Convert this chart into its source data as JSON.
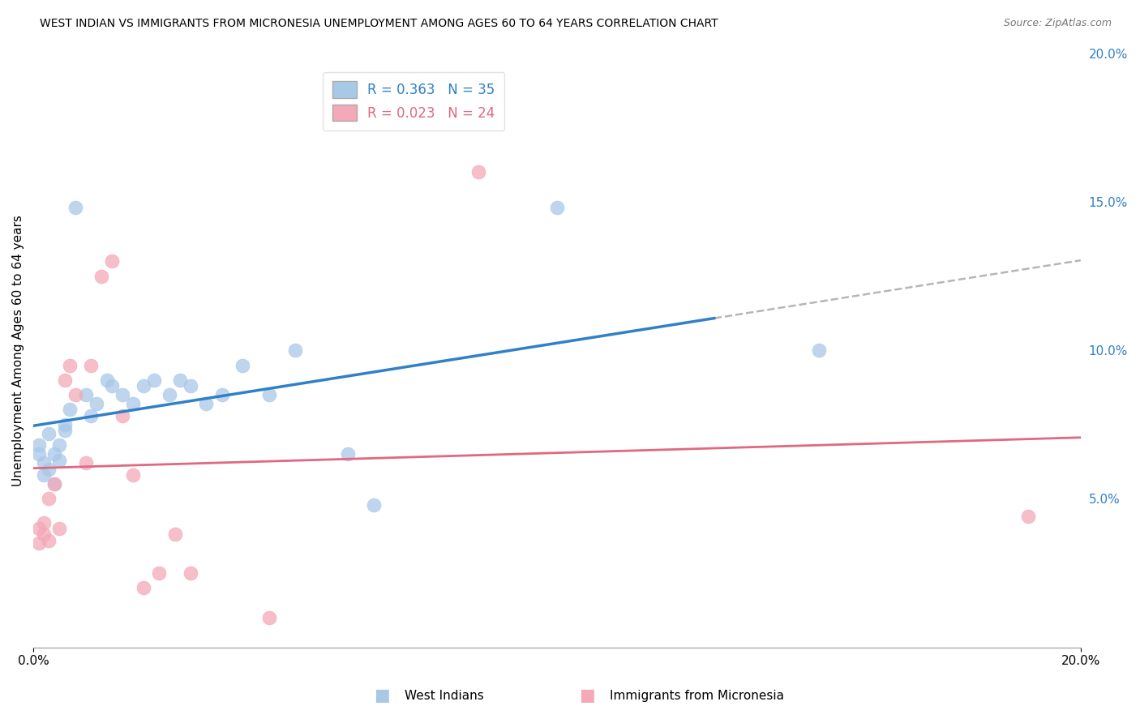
{
  "title": "WEST INDIAN VS IMMIGRANTS FROM MICRONESIA UNEMPLOYMENT AMONG AGES 60 TO 64 YEARS CORRELATION CHART",
  "source": "Source: ZipAtlas.com",
  "ylabel": "Unemployment Among Ages 60 to 64 years",
  "blue_color": "#a8c8e8",
  "pink_color": "#f4a8b8",
  "blue_line_color": "#3080c8",
  "pink_line_color": "#e06880",
  "gray_dash_color": "#aaaaaa",
  "blue_r": 0.363,
  "blue_n": 35,
  "pink_r": 0.023,
  "pink_n": 24,
  "wi_x": [
    0.001,
    0.001,
    0.002,
    0.002,
    0.003,
    0.003,
    0.004,
    0.004,
    0.005,
    0.005,
    0.006,
    0.006,
    0.007,
    0.008,
    0.01,
    0.011,
    0.012,
    0.014,
    0.015,
    0.017,
    0.019,
    0.021,
    0.023,
    0.026,
    0.028,
    0.03,
    0.033,
    0.036,
    0.04,
    0.045,
    0.05,
    0.06,
    0.065,
    0.1,
    0.15
  ],
  "wi_y": [
    0.065,
    0.068,
    0.058,
    0.062,
    0.06,
    0.072,
    0.065,
    0.055,
    0.068,
    0.063,
    0.073,
    0.075,
    0.08,
    0.148,
    0.085,
    0.078,
    0.082,
    0.09,
    0.088,
    0.085,
    0.082,
    0.088,
    0.09,
    0.085,
    0.09,
    0.088,
    0.082,
    0.085,
    0.095,
    0.085,
    0.1,
    0.065,
    0.048,
    0.148,
    0.1
  ],
  "mic_x": [
    0.001,
    0.001,
    0.002,
    0.002,
    0.003,
    0.003,
    0.004,
    0.005,
    0.006,
    0.007,
    0.008,
    0.01,
    0.011,
    0.013,
    0.015,
    0.017,
    0.019,
    0.021,
    0.024,
    0.027,
    0.03,
    0.045,
    0.085,
    0.19
  ],
  "mic_y": [
    0.04,
    0.035,
    0.038,
    0.042,
    0.036,
    0.05,
    0.055,
    0.04,
    0.09,
    0.095,
    0.085,
    0.062,
    0.095,
    0.125,
    0.13,
    0.078,
    0.058,
    0.02,
    0.025,
    0.038,
    0.025,
    0.01,
    0.16,
    0.044
  ],
  "xlim": [
    0.0,
    0.2
  ],
  "ylim": [
    0.0,
    0.2
  ],
  "yticks": [
    0.05,
    0.1,
    0.15,
    0.2
  ],
  "ytick_labels": [
    "5.0%",
    "10.0%",
    "15.0%",
    "20.0%"
  ],
  "xtick_labels": [
    "0.0%",
    "20.0%"
  ],
  "xticks": [
    0.0,
    0.2
  ],
  "grid_color": "#cccccc",
  "spine_color": "#999999",
  "legend_text_color_blue": "#3080c8",
  "legend_text_color_pink": "#e06880",
  "source_color": "#777777",
  "bottom_legend_items": [
    "West Indians",
    "Immigrants from Micronesia"
  ]
}
